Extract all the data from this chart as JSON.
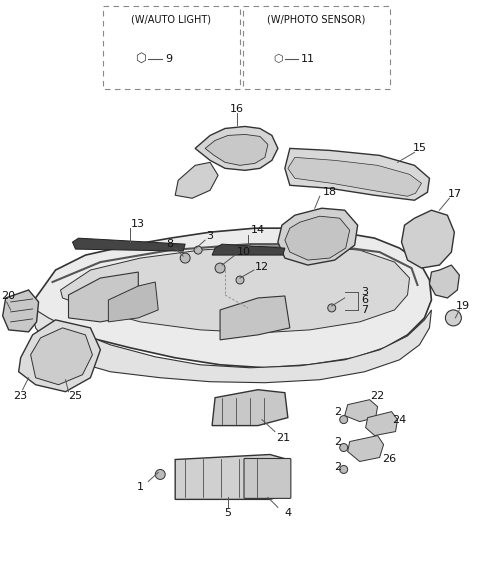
{
  "bg_color": "#ffffff",
  "fig_width": 4.8,
  "fig_height": 5.71,
  "dpi": 100,
  "box1_label": "(W/AUTO LIGHT)",
  "box2_label": "(W/PHOTO SENSOR)",
  "part9_num": "9",
  "part11_num": "11",
  "label_color": "#111111",
  "edge_color": "#333333",
  "face_light": "#e8e8e8",
  "face_mid": "#d0d0d0",
  "face_dark": "#c0c0c0"
}
